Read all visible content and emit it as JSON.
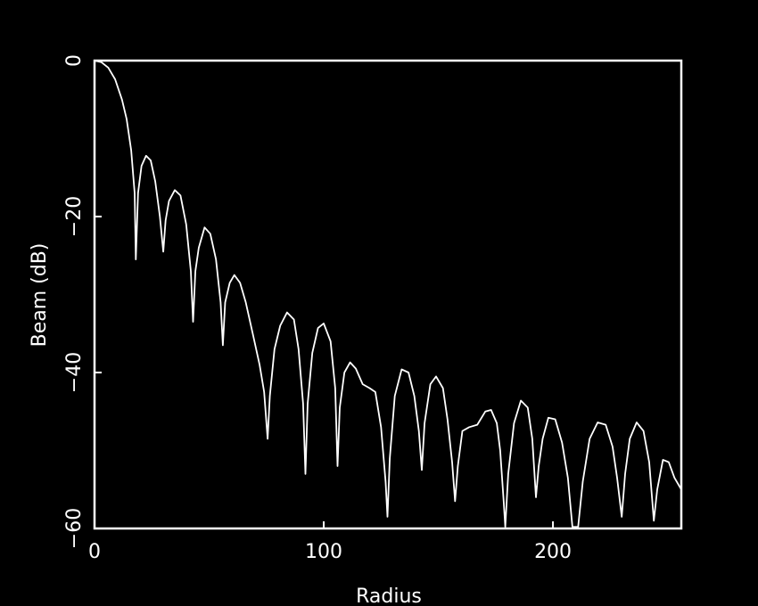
{
  "chart_data": {
    "type": "line",
    "xlabel": "Radius",
    "ylabel": "Beam (dB)",
    "xlim": [
      0,
      256
    ],
    "ylim": [
      -60,
      0
    ],
    "xticks": [
      0,
      100,
      200
    ],
    "yticks": [
      0,
      -20,
      -40,
      -60
    ],
    "grid": false,
    "colors": {
      "background": "#000000",
      "foreground": "#ffffff"
    },
    "series": [
      {
        "points": [
          [
            0,
            0
          ],
          [
            3,
            -0.2
          ],
          [
            6,
            -0.9
          ],
          [
            9,
            -2.4
          ],
          [
            12,
            -5
          ],
          [
            14,
            -7.5
          ],
          [
            16,
            -11.5
          ],
          [
            17.5,
            -17
          ],
          [
            18,
            -25.5
          ],
          [
            19,
            -17
          ],
          [
            20.5,
            -13.5
          ],
          [
            22.5,
            -12.2
          ],
          [
            24.5,
            -12.8
          ],
          [
            26.5,
            -15.5
          ],
          [
            28.5,
            -20
          ],
          [
            30,
            -24.5
          ],
          [
            31,
            -20.5
          ],
          [
            32.5,
            -18
          ],
          [
            35,
            -16.6
          ],
          [
            37.5,
            -17.3
          ],
          [
            40,
            -21
          ],
          [
            42,
            -27
          ],
          [
            43,
            -33.5
          ],
          [
            44,
            -27
          ],
          [
            45.5,
            -24
          ],
          [
            48,
            -21.4
          ],
          [
            50.5,
            -22.2
          ],
          [
            53,
            -25.5
          ],
          [
            55,
            -31
          ],
          [
            56,
            -36.5
          ],
          [
            57,
            -31
          ],
          [
            59,
            -28.5
          ],
          [
            61,
            -27.5
          ],
          [
            63.5,
            -28.5
          ],
          [
            66,
            -31
          ],
          [
            69,
            -35
          ],
          [
            72,
            -39
          ],
          [
            74,
            -42.5
          ],
          [
            75.5,
            -48.5
          ],
          [
            76.5,
            -43
          ],
          [
            78.5,
            -37
          ],
          [
            81,
            -34
          ],
          [
            84,
            -32.3
          ],
          [
            87,
            -33.2
          ],
          [
            89,
            -37
          ],
          [
            91,
            -44
          ],
          [
            92,
            -53
          ],
          [
            93,
            -44
          ],
          [
            95,
            -37.5
          ],
          [
            97.5,
            -34.3
          ],
          [
            100,
            -33.7
          ],
          [
            103,
            -36
          ],
          [
            105,
            -42
          ],
          [
            106,
            -52
          ],
          [
            107,
            -44.5
          ],
          [
            109,
            -40
          ],
          [
            111.5,
            -38.7
          ],
          [
            114,
            -39.5
          ],
          [
            117,
            -41.5
          ],
          [
            120,
            -42
          ],
          [
            122.5,
            -42.5
          ],
          [
            125,
            -47
          ],
          [
            127,
            -54
          ],
          [
            127.8,
            -58.5
          ],
          [
            128.8,
            -51
          ],
          [
            131,
            -43
          ],
          [
            134,
            -39.6
          ],
          [
            137,
            -40
          ],
          [
            139.5,
            -43
          ],
          [
            141.5,
            -47.5
          ],
          [
            142.8,
            -52.5
          ],
          [
            144,
            -46.5
          ],
          [
            146.5,
            -41.5
          ],
          [
            149,
            -40.5
          ],
          [
            152,
            -42
          ],
          [
            154,
            -46
          ],
          [
            156,
            -51.5
          ],
          [
            157.3,
            -56.5
          ],
          [
            158.5,
            -52
          ],
          [
            160.5,
            -47.5
          ],
          [
            163.5,
            -47
          ],
          [
            167,
            -46.7
          ],
          [
            170.5,
            -45
          ],
          [
            173,
            -44.8
          ],
          [
            175.5,
            -46.5
          ],
          [
            177,
            -50
          ],
          [
            178.5,
            -56.5
          ],
          [
            179.2,
            -59.8
          ],
          [
            180.5,
            -53
          ],
          [
            183,
            -46.5
          ],
          [
            186,
            -43.6
          ],
          [
            189,
            -44.5
          ],
          [
            191,
            -48.5
          ],
          [
            192.6,
            -56
          ],
          [
            193.8,
            -52
          ],
          [
            195.5,
            -48.5
          ],
          [
            198,
            -45.8
          ],
          [
            201,
            -46
          ],
          [
            204,
            -49
          ],
          [
            206.5,
            -53.5
          ],
          [
            208.5,
            -59.8
          ],
          [
            211,
            -59.8
          ],
          [
            213,
            -54
          ],
          [
            216,
            -48.5
          ],
          [
            219.5,
            -46.4
          ],
          [
            223,
            -46.7
          ],
          [
            226,
            -49.5
          ],
          [
            228,
            -53.5
          ],
          [
            230,
            -58.5
          ],
          [
            231.5,
            -53
          ],
          [
            233.5,
            -48.5
          ],
          [
            236.5,
            -46.4
          ],
          [
            239.5,
            -47.5
          ],
          [
            242,
            -51.5
          ],
          [
            244,
            -59
          ],
          [
            245.5,
            -55
          ],
          [
            248,
            -51.2
          ],
          [
            250.5,
            -51.5
          ],
          [
            253,
            -53.5
          ],
          [
            256,
            -55
          ]
        ]
      }
    ]
  }
}
